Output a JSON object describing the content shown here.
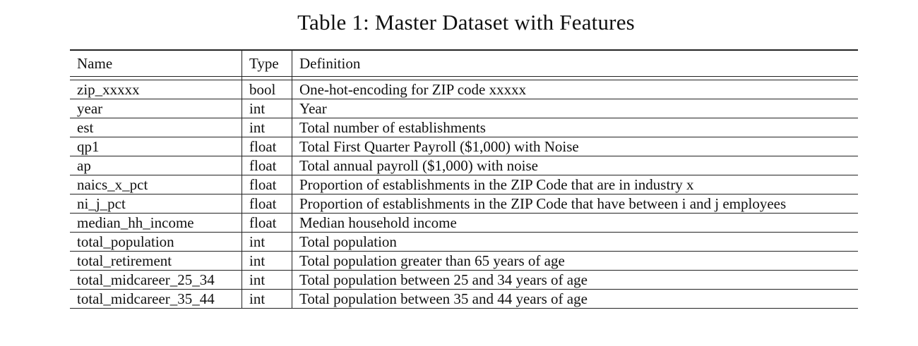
{
  "caption": "Table 1: Master Dataset with Features",
  "table": {
    "headers": {
      "name": "Name",
      "type": "Type",
      "definition": "Definition"
    },
    "rows": [
      {
        "name": "zip_xxxxx",
        "type": "bool",
        "definition": "One-hot-encoding for ZIP code xxxxx"
      },
      {
        "name": "year",
        "type": "int",
        "definition": "Year"
      },
      {
        "name": "est",
        "type": "int",
        "definition": "Total number of establishments"
      },
      {
        "name": "qp1",
        "type": "float",
        "definition": "Total First Quarter Payroll ($1,000) with Noise"
      },
      {
        "name": "ap",
        "type": "float",
        "definition": "Total annual payroll ($1,000) with noise"
      },
      {
        "name": "naics_x_pct",
        "type": "float",
        "definition": "Proportion of establishments in the ZIP Code that are in industry x"
      },
      {
        "name": "ni_j_pct",
        "type": "float",
        "definition": "Proportion of establishments in the ZIP Code that have between i and j employees"
      },
      {
        "name": "median_hh_income",
        "type": "float",
        "definition": "Median household income"
      },
      {
        "name": "total_population",
        "type": "int",
        "definition": "Total population"
      },
      {
        "name": "total_retirement",
        "type": "int",
        "definition": "Total population greater than 65 years of age"
      },
      {
        "name": "total_midcareer_25_34",
        "type": "int",
        "definition": "Total population between 25 and 34 years of age"
      },
      {
        "name": "total_midcareer_35_44",
        "type": "int",
        "definition": "Total population between 35 and 44 years of age"
      }
    ]
  }
}
